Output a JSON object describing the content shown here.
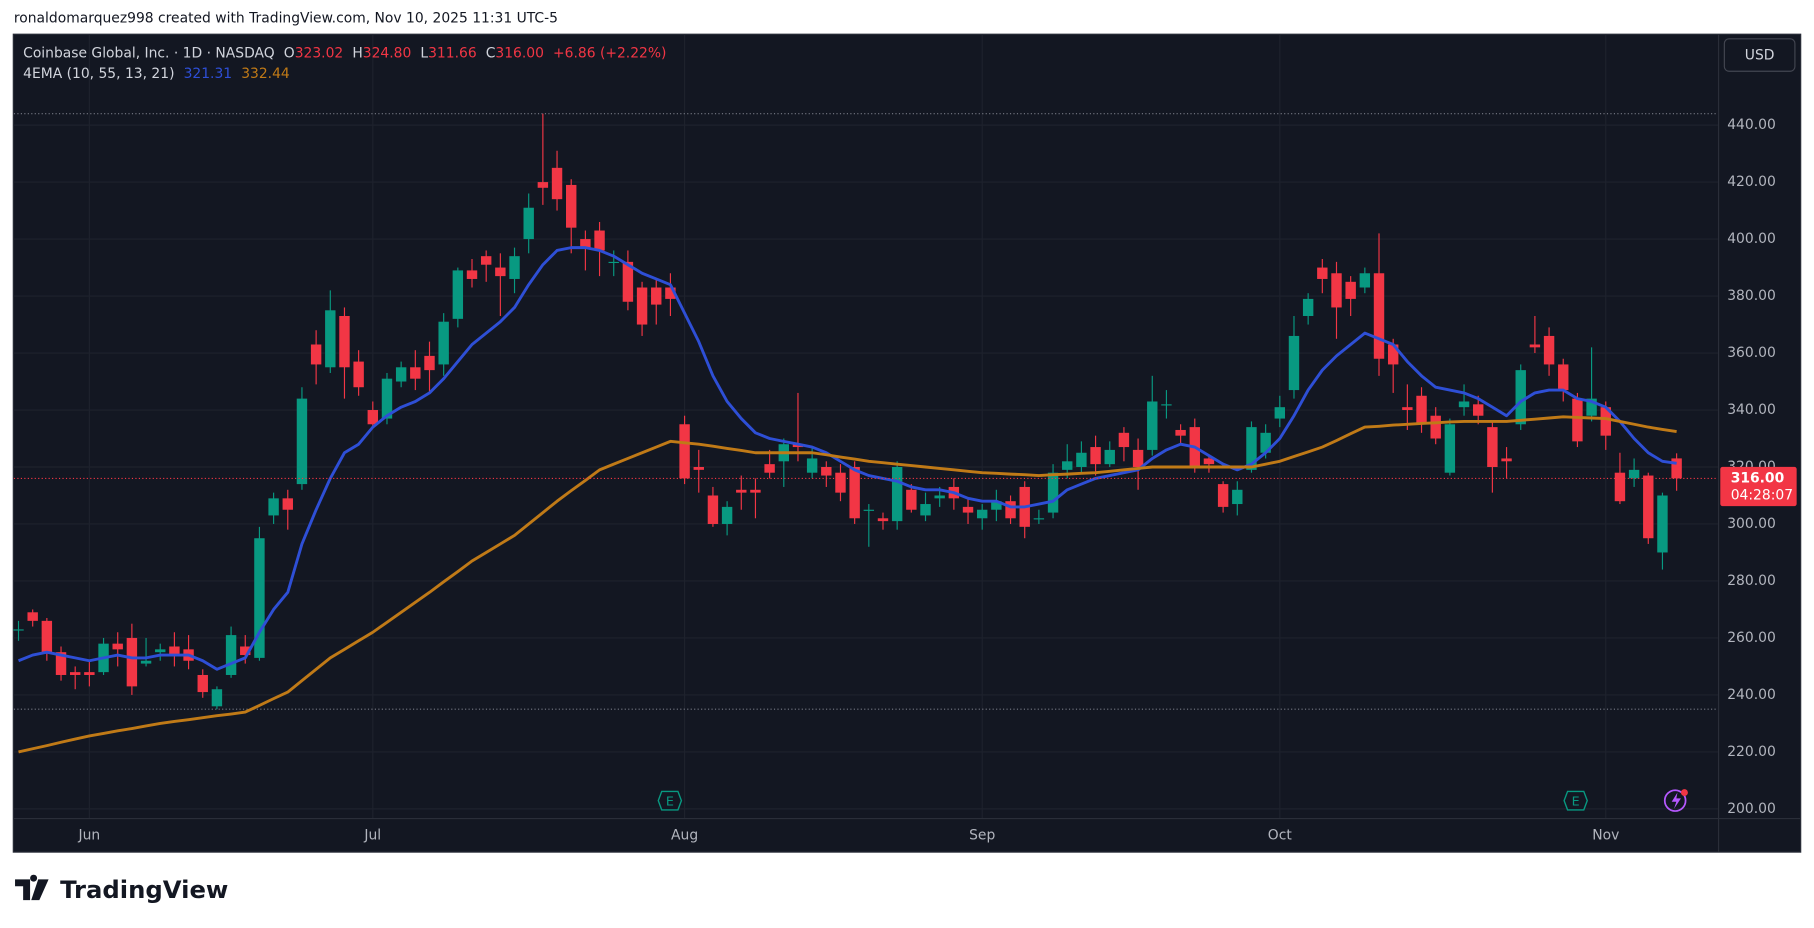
{
  "header": {
    "text": "ronaldomarquez998 created with TradingView.com, Nov 10, 2025 11:31 UTC-5"
  },
  "footer": {
    "brand": "TradingView"
  },
  "chart_data": {
    "type": "candlestick",
    "legend": {
      "symbol": "Coinbase Global, Inc. · 1D · NASDAQ",
      "o": "O",
      "open": "323.02",
      "h": "H",
      "high": "324.80",
      "l": "L",
      "low": "311.66",
      "c": "C",
      "close": "316.00",
      "change": "+6.86 (+2.22%)"
    },
    "currency": "USD",
    "last_price_label": "316.00",
    "countdown": "04:28:07",
    "events": [
      {
        "label": "E"
      },
      {
        "label": "E"
      }
    ],
    "up_color": "#089981",
    "down_color": "#f23645",
    "grid": true,
    "ylim": [
      196.8,
      471.7
    ],
    "yticks": [
      {
        "value": 200,
        "label": "200.00"
      },
      {
        "value": 220,
        "label": "220.00"
      },
      {
        "value": 240,
        "label": "240.00"
      },
      {
        "value": 260,
        "label": "260.00"
      },
      {
        "value": 280,
        "label": "280.00"
      },
      {
        "value": 300,
        "label": "300.00"
      },
      {
        "value": 320,
        "label": "320.00"
      },
      {
        "value": 340,
        "label": "340.00"
      },
      {
        "value": 360,
        "label": "360.00"
      },
      {
        "value": 380,
        "label": "380.00"
      },
      {
        "value": 400,
        "label": "400.00"
      },
      {
        "value": 420,
        "label": "420.00"
      },
      {
        "value": 440,
        "label": "440.00"
      }
    ],
    "categories": [
      null,
      null,
      null,
      null,
      null,
      "Jun",
      null,
      null,
      null,
      null,
      null,
      null,
      null,
      null,
      null,
      null,
      null,
      null,
      null,
      null,
      null,
      null,
      null,
      null,
      null,
      "Jul",
      null,
      null,
      null,
      null,
      null,
      null,
      null,
      null,
      null,
      null,
      null,
      null,
      null,
      null,
      null,
      null,
      null,
      null,
      null,
      null,
      null,
      "Aug",
      null,
      null,
      null,
      null,
      null,
      null,
      null,
      null,
      null,
      null,
      null,
      null,
      null,
      null,
      null,
      null,
      null,
      null,
      null,
      null,
      "Sep",
      null,
      null,
      null,
      null,
      null,
      null,
      null,
      null,
      null,
      null,
      null,
      null,
      null,
      null,
      null,
      null,
      null,
      null,
      null,
      null,
      "Oct",
      null,
      null,
      null,
      null,
      null,
      null,
      null,
      null,
      null,
      null,
      null,
      null,
      null,
      null,
      null,
      null,
      null,
      null,
      null,
      null,
      null,
      null,
      "Nov",
      null,
      null,
      null,
      null,
      null
    ],
    "open": [
      263,
      269,
      266,
      255,
      248,
      248,
      248,
      258,
      260,
      251,
      255,
      257,
      256,
      247,
      236,
      247,
      257,
      253,
      303,
      309,
      314,
      363,
      355,
      373,
      357,
      340,
      337,
      350,
      355,
      359,
      356,
      372,
      389,
      394,
      390,
      386,
      400,
      420,
      425,
      419,
      400,
      403,
      392,
      392,
      383,
      383,
      383,
      335,
      320,
      310,
      300,
      312,
      312,
      321,
      322,
      328,
      318,
      320,
      318,
      320,
      305,
      302,
      301,
      312,
      303,
      309,
      313,
      306,
      302,
      305,
      308,
      313,
      302,
      304,
      319,
      320,
      327,
      321,
      332,
      326,
      326,
      342,
      333,
      334,
      323,
      314,
      307,
      319,
      325,
      337,
      347,
      373,
      390,
      388,
      385,
      383,
      388,
      363,
      341,
      345,
      338,
      318,
      341,
      342,
      334,
      323,
      335,
      363,
      366,
      356,
      344,
      338,
      341,
      318,
      316,
      317,
      290,
      323.02
    ],
    "high": [
      266,
      270,
      267,
      257,
      250,
      252,
      260,
      262,
      265,
      260,
      258,
      262,
      261,
      249,
      243,
      264,
      261,
      299,
      311,
      312,
      348,
      368,
      382,
      376,
      361,
      343,
      353,
      357,
      361,
      364,
      374,
      390,
      393,
      396,
      395,
      397,
      416,
      444,
      431,
      421,
      403,
      406,
      396,
      396,
      385,
      386,
      388,
      338,
      326,
      313,
      308,
      317,
      316,
      326,
      330,
      346,
      327,
      322,
      321,
      322,
      307,
      304,
      322,
      314,
      311,
      313,
      316,
      309,
      307,
      312,
      310,
      315,
      305,
      321,
      328,
      329,
      331,
      329,
      334,
      330,
      352,
      347,
      335,
      337,
      324,
      315,
      315,
      336,
      335,
      345,
      373,
      381,
      393,
      392,
      387,
      390,
      402,
      365,
      349,
      348,
      341,
      337,
      349,
      345,
      336,
      327,
      356,
      373,
      369,
      358,
      346,
      362,
      343,
      325,
      323,
      318,
      311,
      324.8
    ],
    "low": [
      259,
      264,
      252,
      245,
      242,
      243,
      247,
      250,
      240,
      250,
      252,
      250,
      249,
      239,
      235,
      246,
      251,
      252,
      300,
      298,
      312,
      349,
      353,
      344,
      345,
      334,
      335,
      348,
      347,
      346,
      352,
      369,
      383,
      385,
      373,
      381,
      395,
      412,
      410,
      395,
      389,
      387,
      387,
      375,
      366,
      370,
      373,
      314,
      311,
      299,
      296,
      305,
      302,
      316,
      313,
      322,
      316,
      313,
      308,
      300,
      292,
      298,
      298,
      304,
      301,
      306,
      305,
      300,
      298,
      301,
      300,
      295,
      300,
      302,
      316,
      318,
      317,
      320,
      322,
      312,
      324,
      337,
      328,
      318,
      318,
      304,
      303,
      318,
      323,
      334,
      344,
      370,
      381,
      365,
      373,
      381,
      352,
      346,
      333,
      332,
      328,
      317,
      338,
      335,
      311,
      316,
      333,
      360,
      352,
      343,
      327,
      336,
      326,
      307,
      313,
      293,
      284,
      311.66
    ],
    "close": [
      263,
      266,
      255,
      247,
      247,
      247,
      258,
      256,
      243,
      252,
      256,
      254,
      252,
      241,
      242,
      261,
      254,
      295,
      309,
      305,
      344,
      356,
      375,
      355,
      348,
      335,
      351,
      355,
      351,
      354,
      371,
      389,
      386,
      391,
      387,
      394,
      411,
      418,
      414,
      404,
      397,
      396,
      392,
      378,
      370,
      377,
      379,
      316,
      319,
      300,
      306,
      311,
      311,
      318,
      328,
      327,
      323,
      317,
      311,
      302,
      305,
      301,
      320,
      305,
      307,
      310,
      309,
      304,
      305,
      308,
      302,
      299,
      302,
      318,
      322,
      325,
      321,
      326,
      327,
      320,
      343,
      342,
      331,
      320,
      321,
      306,
      312,
      334,
      332,
      341,
      366,
      379,
      386,
      376,
      379,
      388,
      358,
      356,
      340,
      335,
      330,
      335,
      343,
      338,
      320,
      322,
      354,
      362,
      356,
      347,
      329,
      344,
      331,
      308,
      319,
      295,
      310,
      316
    ],
    "indicator": {
      "name": "4EMA (10, 55, 13, 21)",
      "series": [
        {
          "color": "#2e4fd6",
          "value_label": "321.31",
          "values": [
            252,
            254,
            255,
            254,
            253,
            252,
            253,
            254,
            253,
            253,
            254,
            254,
            254,
            252,
            249,
            251,
            253,
            262,
            270,
            276,
            293,
            305,
            316,
            325,
            328,
            334,
            338,
            341,
            343,
            346,
            351,
            357,
            363,
            367,
            371,
            376,
            384,
            391,
            396,
            397,
            397,
            396,
            394,
            391,
            388,
            386,
            384,
            374,
            364,
            352,
            343,
            337,
            332,
            330,
            329,
            328,
            327,
            325,
            322,
            319,
            317,
            316,
            315,
            313,
            312,
            312,
            311,
            309,
            308,
            308,
            306,
            306,
            307,
            308,
            312,
            314,
            316,
            317,
            318,
            319,
            323,
            326,
            328,
            327,
            324,
            321,
            319,
            321,
            325,
            330,
            338,
            347,
            354,
            359,
            363,
            367,
            365,
            363,
            357,
            352,
            348,
            347,
            346,
            344,
            341,
            338,
            343,
            346,
            347,
            347,
            344,
            343,
            341,
            336,
            330,
            325,
            322,
            321.31
          ]
        },
        {
          "color": "#c07a17",
          "value_label": "332.44",
          "values": [
            220.0,
            221.1,
            222.2,
            223.4,
            224.5,
            225.6,
            226.5,
            227.4,
            228.2,
            229.1,
            230.0,
            230.7,
            231.3,
            232.0,
            232.7,
            233.3,
            234.0,
            236.3,
            238.7,
            241.0,
            245.0,
            249.0,
            253.0,
            256.0,
            259.0,
            262.0,
            265.5,
            269.0,
            272.5,
            276.0,
            279.7,
            283.3,
            287.0,
            290.0,
            293.0,
            296.0,
            300.0,
            304.0,
            308.0,
            311.7,
            315.3,
            319.0,
            321.0,
            323.0,
            325.0,
            327.0,
            329.0,
            328.5,
            328.0,
            327.3,
            326.5,
            325.8,
            325.0,
            325.0,
            325.0,
            325.0,
            325.0,
            324.3,
            323.5,
            322.8,
            322.0,
            321.5,
            321.0,
            320.5,
            320.0,
            319.5,
            319.0,
            318.5,
            318.0,
            317.8,
            317.5,
            317.3,
            317.0,
            317.3,
            317.5,
            317.8,
            318.0,
            318.5,
            319.0,
            319.5,
            320.0,
            320.0,
            320.0,
            320.0,
            320.0,
            320.0,
            320.0,
            320.0,
            321.0,
            322.0,
            323.7,
            325.3,
            327.0,
            329.3,
            331.7,
            334.0,
            334.3,
            334.7,
            335.0,
            335.3,
            335.5,
            335.8,
            336.0,
            336.0,
            336.0,
            336.0,
            336.4,
            336.8,
            337.2,
            337.6,
            337.4,
            337.2,
            337.0,
            336.0,
            335.0,
            334.0,
            333.2,
            332.44
          ]
        }
      ]
    }
  }
}
